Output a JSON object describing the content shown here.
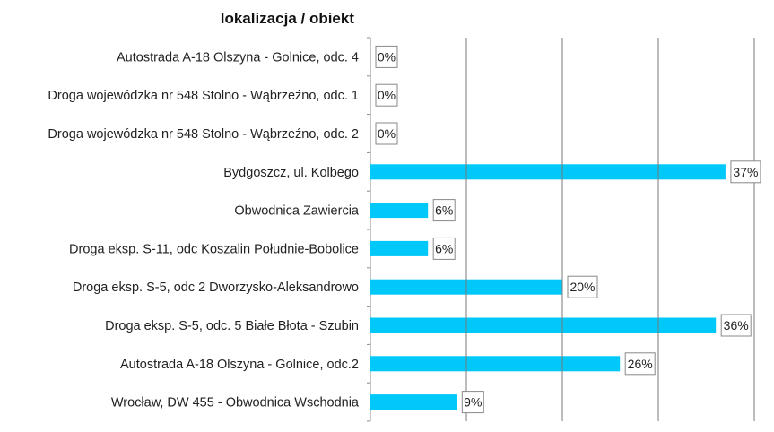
{
  "chart_data": {
    "type": "bar",
    "orientation": "horizontal",
    "title": "lokalizacja / obiekt",
    "xlabel": "",
    "ylabel": "",
    "xlim": [
      0,
      40
    ],
    "grid": true,
    "bar_color": "#00C8F8",
    "categories": [
      "Autostrada A-18 Olszyna - Golnice, odc. 4",
      "Droga wojewódzka nr 548 Stolno - Wąbrzeźno, odc. 1",
      "Droga wojewódzka nr 548 Stolno - Wąbrzeźno, odc. 2",
      "Bydgoszcz, ul. Kolbego",
      "Obwodnica Zawiercia",
      "Droga eksp. S-11, odc Koszalin Południe-Bobolice",
      "Droga eksp. S-5, odc 2 Dworzysko-Aleksandrowo",
      "Droga eksp. S-5, odc. 5 Białe Błota - Szubin",
      "Autostrada A-18 Olszyna - Golnice, odc.2",
      "Wrocław, DW 455 - Obwodnica Wschodnia"
    ],
    "values": [
      0,
      0,
      0,
      37,
      6,
      6,
      20,
      36,
      26,
      9
    ],
    "data_labels": [
      "0%",
      "0%",
      "0%",
      "37%",
      "6%",
      "6%",
      "20%",
      "36%",
      "26%",
      "9%"
    ]
  }
}
